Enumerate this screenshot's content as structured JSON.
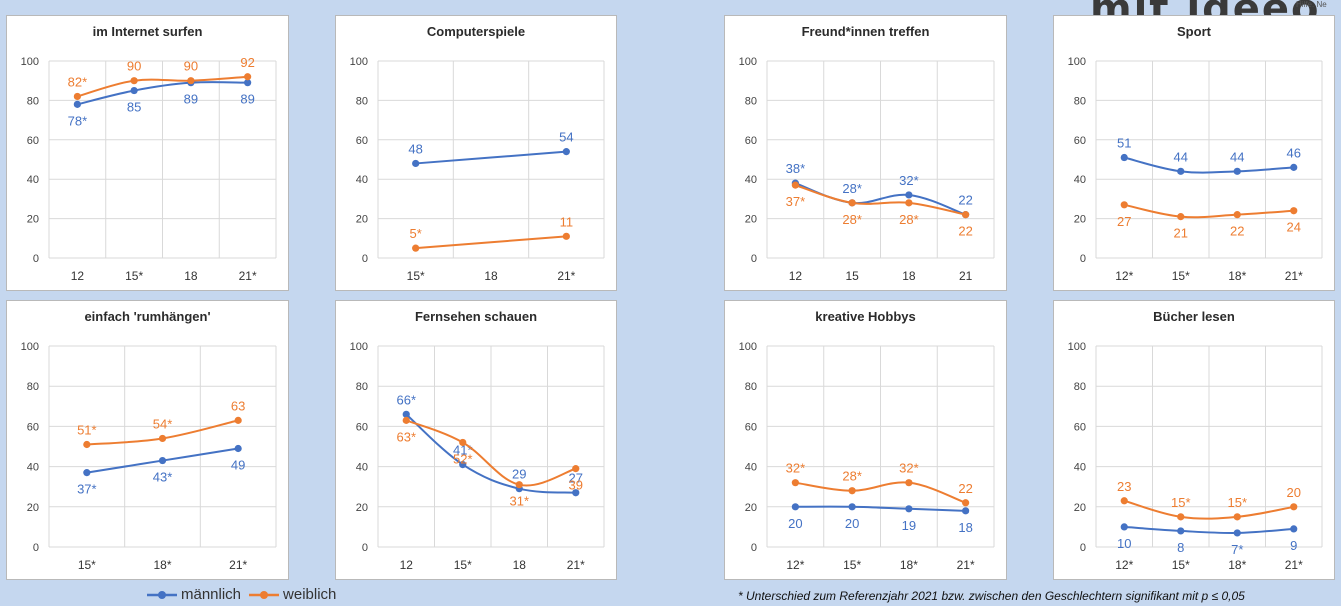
{
  "header": {
    "brand": "mit ideeo",
    "brand_small": "Hilfe. Ne"
  },
  "legend": [
    {
      "label": "männlich",
      "color": "#4472c4"
    },
    {
      "label": "weiblich",
      "color": "#ed7d31"
    }
  ],
  "footnote": "* Unterschied zum Referenzjahr 2021 bzw. zwischen den Geschlechtern  signifikant mit p ≤ 0,05",
  "colors": {
    "maennlich": "#4472c4",
    "weiblich": "#ed7d31"
  },
  "chart_data": [
    {
      "type": "line",
      "title": "im Internet surfen",
      "categories": [
        "12",
        "15*",
        "18",
        "21*"
      ],
      "ylim": [
        0,
        100
      ],
      "yticks": [
        0,
        20,
        40,
        60,
        80,
        100
      ],
      "grid": true,
      "series": [
        {
          "name": "männlich",
          "values": [
            78,
            85,
            89,
            89
          ],
          "labels": [
            "78*",
            "85",
            "89",
            "89"
          ]
        },
        {
          "name": "weiblich",
          "values": [
            82,
            90,
            90,
            92
          ],
          "labels": [
            "82*",
            "90",
            "90",
            "92"
          ]
        }
      ]
    },
    {
      "type": "line",
      "title": "Computerspiele",
      "categories": [
        "15*",
        "18",
        "21*"
      ],
      "ylim": [
        0,
        100
      ],
      "yticks": [
        0,
        20,
        40,
        60,
        80,
        100
      ],
      "grid": true,
      "series": [
        {
          "name": "männlich",
          "values": [
            48,
            null,
            54
          ],
          "labels": [
            "48",
            "",
            "54"
          ]
        },
        {
          "name": "weiblich",
          "values": [
            5,
            null,
            11
          ],
          "labels": [
            "5*",
            "",
            "11"
          ]
        }
      ]
    },
    {
      "type": "line",
      "title": "Freund*innen treffen",
      "categories": [
        "12",
        "15",
        "18",
        "21"
      ],
      "ylim": [
        0,
        100
      ],
      "yticks": [
        0,
        20,
        40,
        60,
        80,
        100
      ],
      "grid": true,
      "series": [
        {
          "name": "männlich",
          "values": [
            38,
            28,
            32,
            22
          ],
          "labels": [
            "38*",
            "28*",
            "32*",
            "22"
          ]
        },
        {
          "name": "weiblich",
          "values": [
            37,
            28,
            28,
            22
          ],
          "labels": [
            "37*",
            "28*",
            "28*",
            "22"
          ]
        }
      ]
    },
    {
      "type": "line",
      "title": "Sport",
      "categories": [
        "12*",
        "15*",
        "18*",
        "21*"
      ],
      "ylim": [
        0,
        100
      ],
      "yticks": [
        0,
        20,
        40,
        60,
        80,
        100
      ],
      "grid": true,
      "series": [
        {
          "name": "männlich",
          "values": [
            51,
            44,
            44,
            46
          ],
          "labels": [
            "51",
            "44",
            "44",
            "46"
          ]
        },
        {
          "name": "weiblich",
          "values": [
            27,
            21,
            22,
            24
          ],
          "labels": [
            "27",
            "21",
            "22",
            "24"
          ]
        }
      ]
    },
    {
      "type": "line",
      "title": "einfach 'rumhängen'",
      "categories": [
        "15*",
        "18*",
        "21*"
      ],
      "ylim": [
        0,
        100
      ],
      "yticks": [
        0,
        20,
        40,
        60,
        80,
        100
      ],
      "grid": true,
      "series": [
        {
          "name": "männlich",
          "values": [
            37,
            43,
            49
          ],
          "labels": [
            "37*",
            "43*",
            "49"
          ]
        },
        {
          "name": "weiblich",
          "values": [
            51,
            54,
            63
          ],
          "labels": [
            "51*",
            "54*",
            "63"
          ]
        }
      ]
    },
    {
      "type": "line",
      "title": "Fernsehen schauen",
      "categories": [
        "12",
        "15*",
        "18",
        "21*"
      ],
      "ylim": [
        0,
        100
      ],
      "yticks": [
        0,
        20,
        40,
        60,
        80,
        100
      ],
      "grid": true,
      "series": [
        {
          "name": "männlich",
          "values": [
            66,
            41,
            29,
            27
          ],
          "labels": [
            "66*",
            "41*",
            "29",
            "27"
          ]
        },
        {
          "name": "weiblich",
          "values": [
            63,
            52,
            31,
            39
          ],
          "labels": [
            "63*",
            "52*",
            "31*",
            "39"
          ]
        }
      ]
    },
    {
      "type": "line",
      "title": "kreative Hobbys",
      "categories": [
        "12*",
        "15*",
        "18*",
        "21*"
      ],
      "ylim": [
        0,
        100
      ],
      "yticks": [
        0,
        20,
        40,
        60,
        80,
        100
      ],
      "grid": true,
      "series": [
        {
          "name": "männlich",
          "values": [
            20,
            20,
            19,
            18
          ],
          "labels": [
            "20",
            "20",
            "19",
            "18"
          ]
        },
        {
          "name": "weiblich",
          "values": [
            32,
            28,
            32,
            22
          ],
          "labels": [
            "32*",
            "28*",
            "32*",
            "22"
          ]
        }
      ]
    },
    {
      "type": "line",
      "title": "Bücher lesen",
      "categories": [
        "12*",
        "15*",
        "18*",
        "21*"
      ],
      "ylim": [
        0,
        100
      ],
      "yticks": [
        0,
        20,
        40,
        60,
        80,
        100
      ],
      "grid": true,
      "series": [
        {
          "name": "männlich",
          "values": [
            10,
            8,
            7,
            9
          ],
          "labels": [
            "10",
            "8",
            "7*",
            "9"
          ]
        },
        {
          "name": "weiblich",
          "values": [
            23,
            15,
            15,
            20
          ],
          "labels": [
            "23",
            "15*",
            "15*",
            "20"
          ]
        }
      ]
    }
  ]
}
